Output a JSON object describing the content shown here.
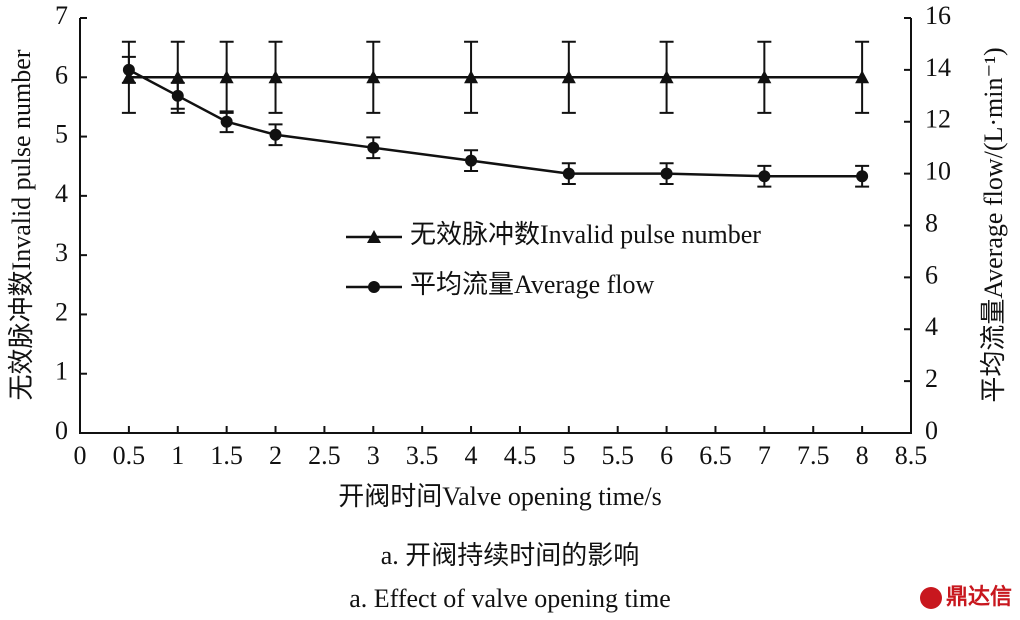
{
  "chart_data": {
    "type": "line",
    "categories": [
      "0.5",
      "1",
      "1.5",
      "2",
      "3",
      "4",
      "5",
      "6",
      "7",
      "8"
    ],
    "xticks": [
      "0",
      "0.5",
      "1",
      "1.5",
      "2",
      "2.5",
      "3",
      "3.5",
      "4",
      "4.5",
      "5",
      "5.5",
      "6",
      "6.5",
      "7",
      "7.5",
      "8",
      "8.5"
    ],
    "xlabel": "开阀时间Valve opening time/s",
    "ylabel": "无效脉冲数Invalid pulse number",
    "y2label": "平均流量Average flow/(L·min⁻¹)",
    "ylim": [
      0,
      7
    ],
    "yticks": [
      0,
      1,
      2,
      3,
      4,
      5,
      6,
      7
    ],
    "y2lim": [
      0,
      16
    ],
    "y2ticks": [
      0,
      2,
      4,
      6,
      8,
      10,
      12,
      14,
      16
    ],
    "series": [
      {
        "name": "无效脉冲数Invalid pulse number",
        "color": "#111111",
        "marker": "triangle",
        "values": [
          6,
          6,
          6,
          6,
          6,
          6,
          6,
          6,
          6,
          6
        ],
        "errors": [
          0.6,
          0.6,
          0.6,
          0.6,
          0.6,
          0.6,
          0.6,
          0.6,
          0.6,
          0.6
        ]
      },
      {
        "name": "平均流量Average flow",
        "color": "#111111",
        "marker": "circle",
        "axis": "y2",
        "values": [
          14,
          13,
          12,
          11.5,
          11,
          10.5,
          10,
          10,
          9.9,
          9.9
        ],
        "errors": [
          0.5,
          0.5,
          0.4,
          0.4,
          0.4,
          0.4,
          0.4,
          0.4,
          0.4,
          0.4
        ]
      }
    ],
    "caption": [
      "a.  开阀持续时间的影响",
      "a. Effect of valve opening time"
    ],
    "watermark": "鼎达信"
  }
}
